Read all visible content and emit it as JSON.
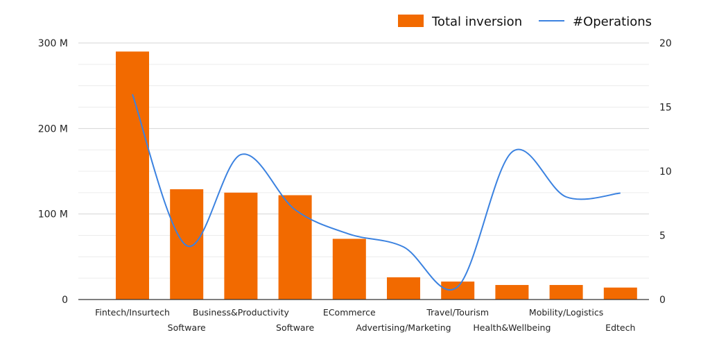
{
  "chart_data": {
    "type": "bar",
    "categories": [
      "Fintech/Insurtech",
      "Software",
      "Business&Productivity",
      "Software",
      "ECommerce",
      "Advertising/Marketing",
      "Travel/Tourism",
      "Health&Wellbeing",
      "Mobility/Logistics",
      "Edtech"
    ],
    "series": [
      {
        "name": "Total inversion",
        "type": "bar",
        "axis": "left",
        "color": "#f26a00",
        "values": [
          290000000,
          129000000,
          125000000,
          122000000,
          71000000,
          26000000,
          21000000,
          17000000,
          17000000,
          14000000
        ]
      },
      {
        "name": "#Operations",
        "type": "line",
        "smooth": true,
        "axis": "right",
        "color": "#3b82e0",
        "values": [
          16,
          4.2,
          11.3,
          7,
          5.1,
          4.1,
          1,
          11.5,
          8,
          8.3
        ]
      }
    ],
    "y_left": {
      "ylim": [
        0,
        300000000
      ],
      "tick_labels": [
        "0",
        "100 M",
        "200 M",
        "300 M"
      ],
      "tick_values": [
        0,
        100000000,
        200000000,
        300000000
      ]
    },
    "y_right": {
      "ylim": [
        0,
        20
      ],
      "tick_labels": [
        "0",
        "5",
        "10",
        "15",
        "20"
      ],
      "tick_values": [
        0,
        5,
        10,
        15,
        20
      ]
    },
    "grid": true,
    "legend": "top-right",
    "title": "",
    "xlabel": "",
    "ylabel": ""
  }
}
